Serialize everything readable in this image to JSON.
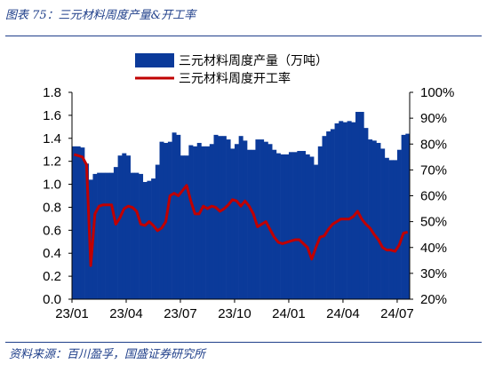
{
  "figure": {
    "title": "图表 75：三元材料周度产量&开工率",
    "source": "资料来源：百川盈孚，国盛证券研究所"
  },
  "colors": {
    "bar": "#0b3a9a",
    "line": "#c00000",
    "text": "#000000",
    "brand": "#1f3f8a"
  },
  "chart_data": {
    "type": "bar",
    "legend_placement": "top-center",
    "grid": false,
    "x_tick_labels": [
      "23/01",
      "23/04",
      "23/07",
      "23/10",
      "24/01",
      "24/04",
      "24/07"
    ],
    "x_tick_index": [
      0,
      13,
      26,
      39,
      52,
      65,
      78
    ],
    "y_left": {
      "ylim": [
        0,
        1.8
      ],
      "ticks": [
        "0.0",
        "0.2",
        "0.4",
        "0.6",
        "0.8",
        "1.0",
        "1.2",
        "1.4",
        "1.6",
        "1.8"
      ]
    },
    "y_right": {
      "ylim": [
        20,
        100
      ],
      "ticks": [
        "20%",
        "30%",
        "40%",
        "50%",
        "60%",
        "70%",
        "80%",
        "90%",
        "100%"
      ]
    },
    "series": [
      {
        "name": "三元材料周度产量（万吨）",
        "type": "bar",
        "axis": "left",
        "values": [
          1.33,
          1.33,
          1.32,
          1.18,
          1.04,
          1.09,
          1.1,
          1.1,
          1.1,
          1.1,
          1.15,
          1.25,
          1.27,
          1.25,
          1.1,
          1.1,
          1.09,
          1.02,
          1.03,
          1.05,
          1.17,
          1.37,
          1.36,
          1.37,
          1.45,
          1.43,
          1.25,
          1.25,
          1.34,
          1.33,
          1.36,
          1.33,
          1.33,
          1.35,
          1.43,
          1.42,
          1.42,
          1.39,
          1.31,
          1.35,
          1.42,
          1.38,
          1.3,
          1.3,
          1.39,
          1.39,
          1.37,
          1.35,
          1.3,
          1.27,
          1.26,
          1.26,
          1.28,
          1.28,
          1.29,
          1.29,
          1.26,
          1.24,
          1.17,
          1.33,
          1.42,
          1.46,
          1.48,
          1.53,
          1.55,
          1.54,
          1.55,
          1.54,
          1.63,
          1.63,
          1.49,
          1.39,
          1.38,
          1.36,
          1.31,
          1.23,
          1.21,
          1.21,
          1.3,
          1.43,
          1.44
        ]
      },
      {
        "name": "三元材料周度开工率",
        "type": "line",
        "axis": "right",
        "values": [
          76.0,
          75.5,
          75.0,
          72.0,
          33.0,
          53.0,
          56.0,
          56.5,
          56.5,
          56.5,
          49.0,
          51.5,
          55.0,
          56.0,
          55.5,
          54.0,
          49.0,
          48.5,
          50.0,
          48.5,
          46.5,
          47.5,
          50.0,
          60.0,
          61.0,
          60.0,
          62.0,
          64.0,
          58.0,
          53.0,
          53.0,
          56.0,
          55.0,
          56.0,
          55.5,
          54.0,
          55.0,
          56.5,
          58.5,
          58.0,
          56.0,
          58.0,
          56.0,
          53.0,
          48.0,
          49.0,
          50.0,
          47.0,
          44.0,
          42.0,
          41.5,
          42.0,
          42.5,
          43.0,
          43.0,
          41.5,
          40.0,
          35.5,
          40.0,
          44.0,
          44.5,
          47.0,
          49.0,
          50.0,
          51.0,
          51.0,
          51.0,
          52.0,
          54.0,
          51.0,
          49.0,
          47.5,
          45.0,
          43.0,
          40.0,
          39.0,
          39.0,
          38.5,
          41.0,
          45.5,
          46.0
        ]
      }
    ]
  }
}
